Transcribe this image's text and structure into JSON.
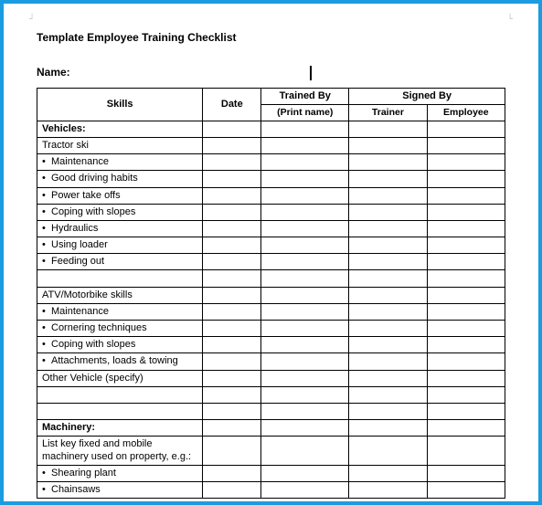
{
  "title": "Template Employee Training Checklist",
  "name_label": "Name:",
  "headers": {
    "skills": "Skills",
    "date": "Date",
    "trained_by": "Trained By",
    "trained_by_sub": "(Print name)",
    "signed_by": "Signed By",
    "trainer": "Trainer",
    "employee": "Employee"
  },
  "sections": {
    "vehicles": "Vehicles:",
    "tractor_ski": "Tractor ski",
    "tractor_items": [
      "Maintenance",
      "Good driving habits",
      "Power take offs",
      "Coping with slopes",
      "Hydraulics",
      "Using loader",
      "Feeding out"
    ],
    "atv_header": "ATV/Motorbike skills",
    "atv_items": [
      "Maintenance",
      "Cornering techniques",
      "Coping with slopes",
      "Attachments, loads & towing"
    ],
    "other_vehicle": "Other Vehicle (specify)",
    "machinery": "Machinery:",
    "machinery_desc": "List key fixed and mobile machinery used on property, e.g.:",
    "machinery_items": [
      "Shearing plant",
      "Chainsaws"
    ]
  },
  "colors": {
    "frame_border": "#1b9ce0",
    "text": "#000000",
    "background": "#ffffff"
  },
  "table_style": {
    "border_color": "#000000",
    "font_size_pt": 11,
    "header_font_weight": "bold"
  }
}
